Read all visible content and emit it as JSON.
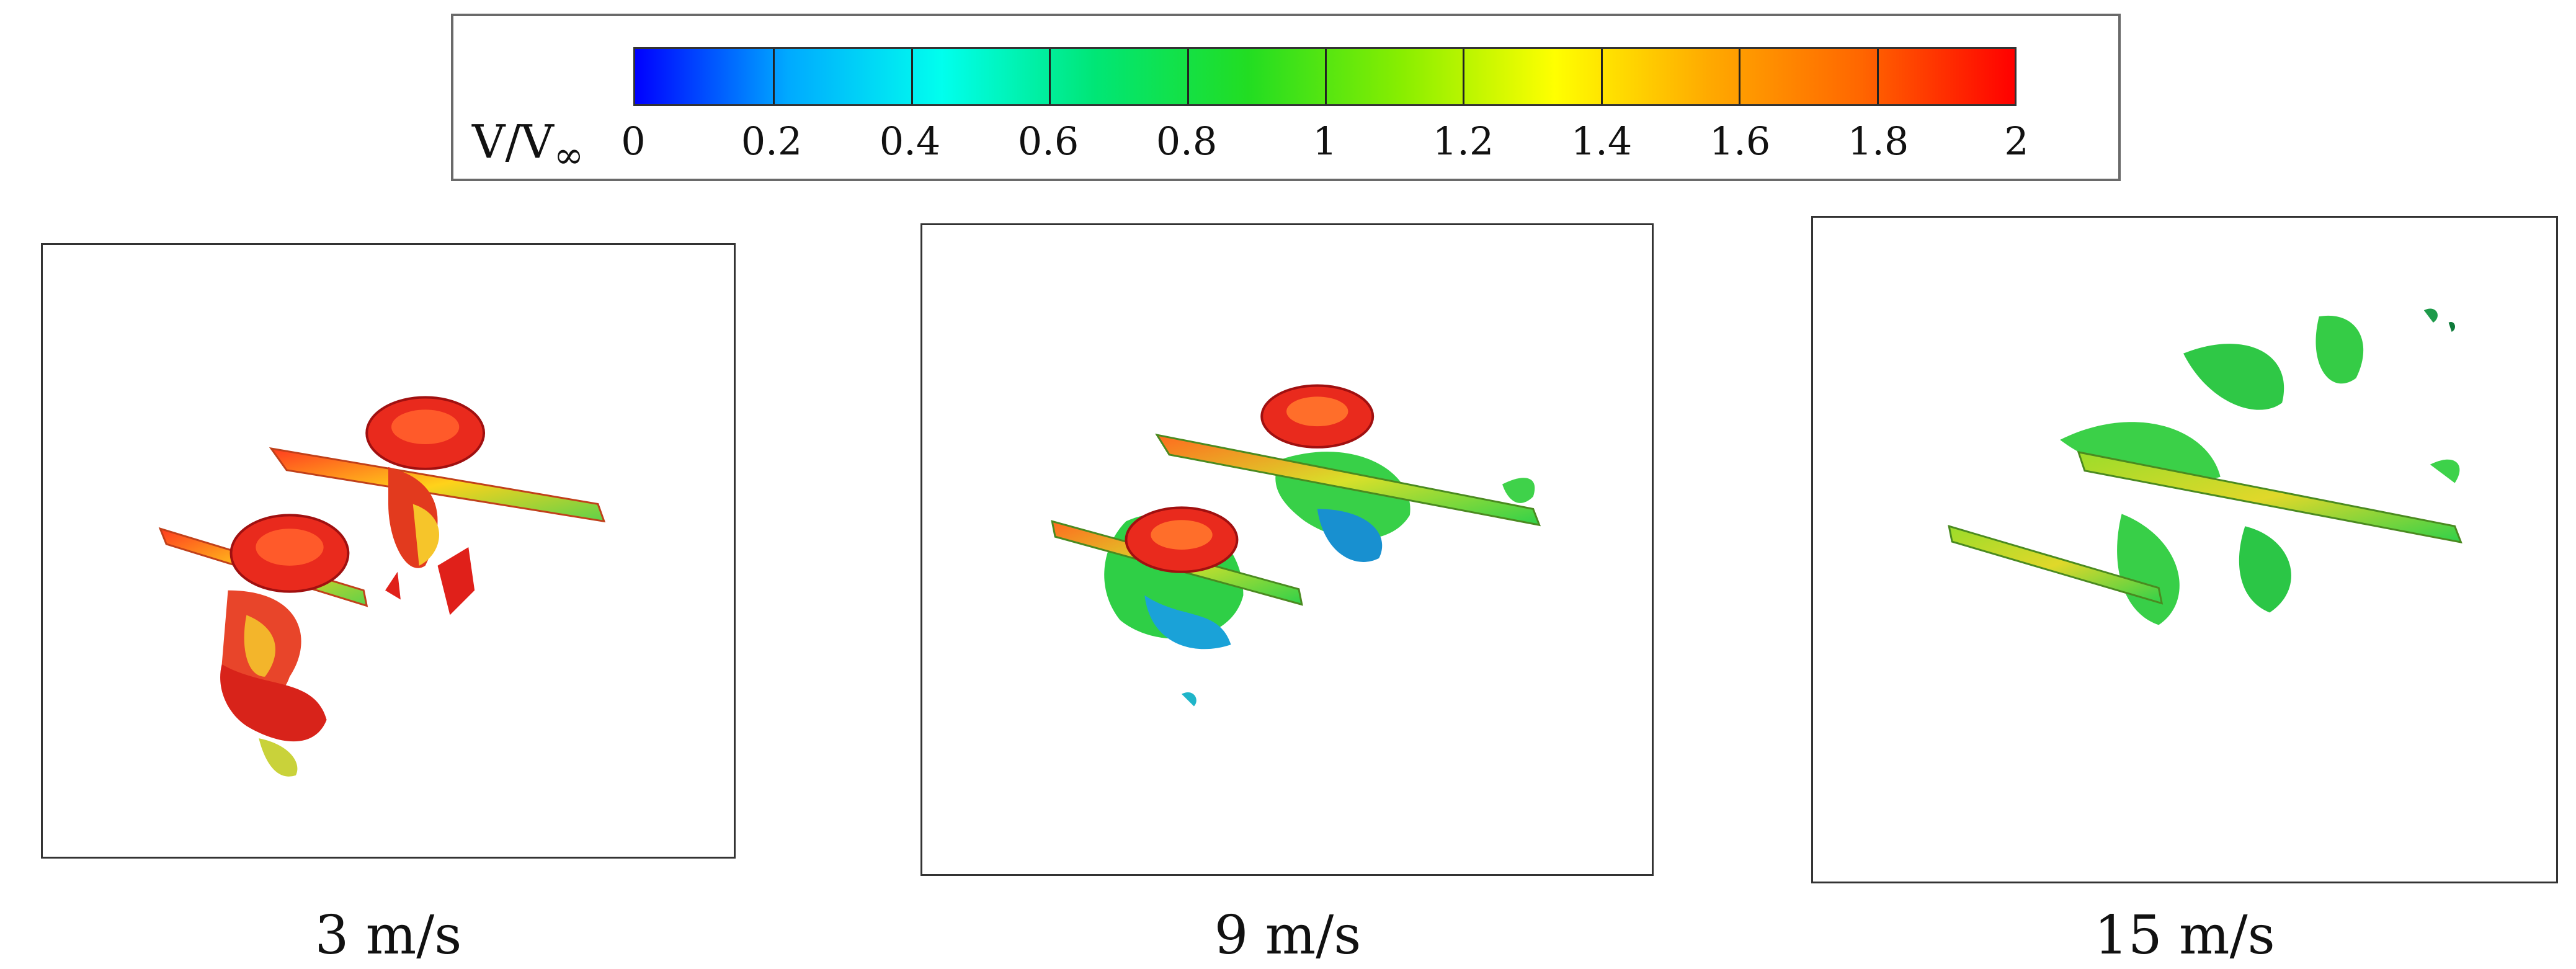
{
  "colorbar": {
    "label_main": "V/V",
    "label_sub": "∞",
    "ticks": [
      "0",
      "0.2",
      "0.4",
      "0.6",
      "0.8",
      "1",
      "1.2",
      "1.4",
      "1.6",
      "1.8",
      "2"
    ],
    "range": [
      0,
      2
    ],
    "gradient_colors": [
      "#0000ff",
      "#00aaff",
      "#00ffee",
      "#00e676",
      "#22dd22",
      "#88ee00",
      "#ffff00",
      "#ffaa00",
      "#ff6600",
      "#ff0000"
    ]
  },
  "panels": [
    {
      "caption": "3 m/s",
      "dominant_color": "#e8281e"
    },
    {
      "caption": "9 m/s",
      "dominant_color": "#2ccf3a"
    },
    {
      "caption": "15 m/s",
      "dominant_color": "#3fd24a"
    }
  ]
}
